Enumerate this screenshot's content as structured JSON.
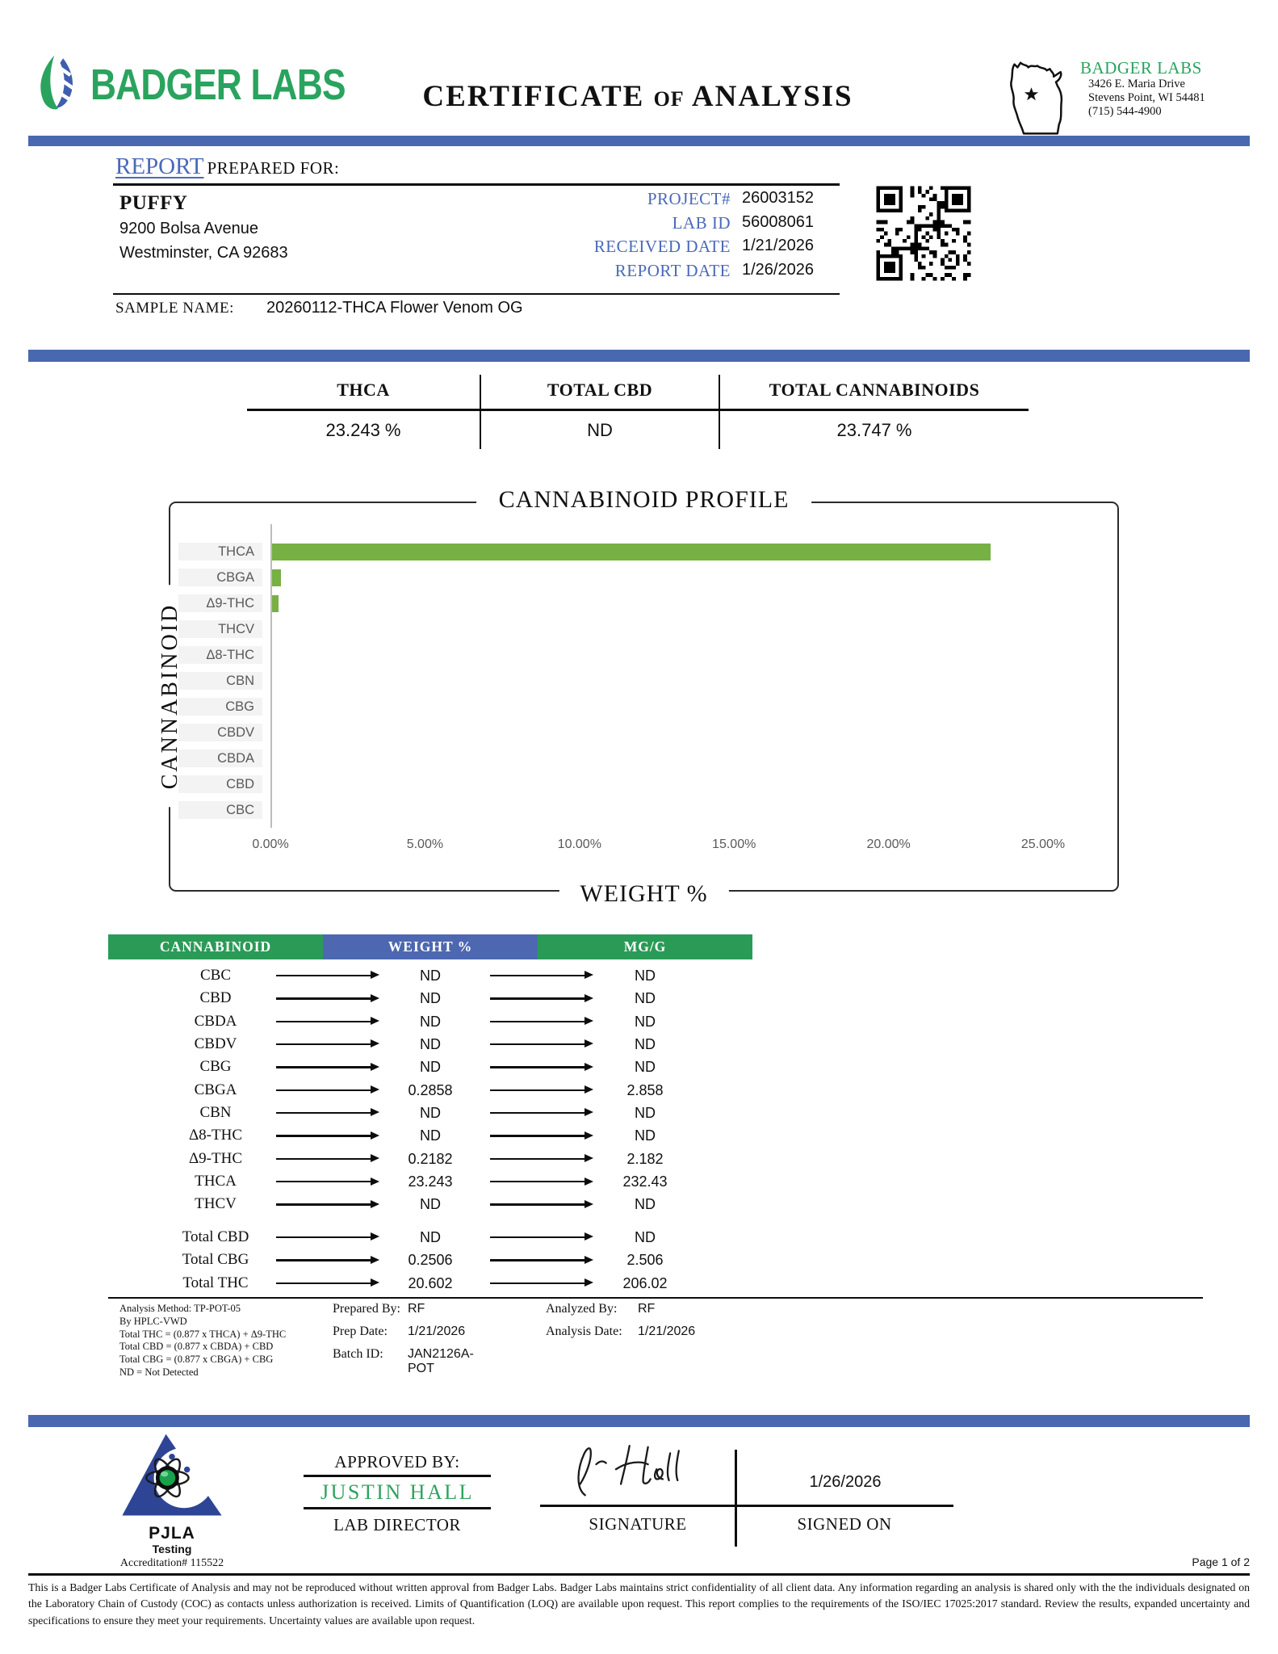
{
  "header": {
    "brand": "BADGER LABS",
    "title_1": "CERTIFICATE",
    "title_of": "OF",
    "title_2": "ANALYSIS",
    "lab_name": "BADGER LABS",
    "lab_address_line1": "3426 E. Maria Drive",
    "lab_address_line2": "Stevens Point, WI 54481",
    "lab_phone": "(715) 544-4900"
  },
  "report": {
    "section_word": "REPORT",
    "section_rest": "PREPARED FOR:",
    "client_name": "PUFFY",
    "client_address_line1": "9200 Bolsa Avenue",
    "client_address_line2": "Westminster, CA 92683",
    "fields": [
      {
        "label": "PROJECT#",
        "value": "26003152"
      },
      {
        "label": "LAB ID",
        "value": "56008061"
      },
      {
        "label": "RECEIVED DATE",
        "value": "1/21/2026"
      },
      {
        "label": "REPORT DATE",
        "value": "1/26/2026"
      }
    ],
    "sample_name_label": "SAMPLE NAME:",
    "sample_name": "20260112-THCA Flower Venom OG"
  },
  "summary": {
    "columns": [
      {
        "label": "THCA",
        "value": "23.243 %"
      },
      {
        "label": "TOTAL CBD",
        "value": "ND"
      },
      {
        "label": "TOTAL CANNABINOIDS",
        "value": "23.747 %"
      }
    ]
  },
  "chart_data": {
    "type": "bar",
    "orientation": "horizontal",
    "title": "CANNABINOID PROFILE",
    "xlabel": "WEIGHT %",
    "ylabel": "CANNABINOID",
    "categories": [
      "THCA",
      "CBGA",
      "Δ9-THC",
      "THCV",
      "Δ8-THC",
      "CBN",
      "CBG",
      "CBDV",
      "CBDA",
      "CBD",
      "CBC"
    ],
    "values": [
      23.243,
      0.2858,
      0.2182,
      0,
      0,
      0,
      0,
      0,
      0,
      0,
      0
    ],
    "xlim": [
      0,
      25
    ],
    "xticks": [
      "0.00%",
      "5.00%",
      "10.00%",
      "15.00%",
      "20.00%",
      "25.00%"
    ],
    "grid": false,
    "bar_color": "#77b043"
  },
  "table": {
    "headers": [
      "CANNABINOID",
      "WEIGHT %",
      "MG/G"
    ],
    "rows": [
      {
        "name": "CBC",
        "weight": "ND",
        "mgg": "ND"
      },
      {
        "name": "CBD",
        "weight": "ND",
        "mgg": "ND"
      },
      {
        "name": "CBDA",
        "weight": "ND",
        "mgg": "ND"
      },
      {
        "name": "CBDV",
        "weight": "ND",
        "mgg": "ND"
      },
      {
        "name": "CBG",
        "weight": "ND",
        "mgg": "ND"
      },
      {
        "name": "CBGA",
        "weight": "0.2858",
        "mgg": "2.858"
      },
      {
        "name": "CBN",
        "weight": "ND",
        "mgg": "ND"
      },
      {
        "name": "Δ8-THC",
        "weight": "ND",
        "mgg": "ND"
      },
      {
        "name": "Δ9-THC",
        "weight": "0.2182",
        "mgg": "2.182"
      },
      {
        "name": "THCA",
        "weight": "23.243",
        "mgg": "232.43"
      },
      {
        "name": "THCV",
        "weight": "ND",
        "mgg": "ND"
      }
    ],
    "totals": [
      {
        "name": "Total CBD",
        "weight": "ND",
        "mgg": "ND"
      },
      {
        "name": "Total CBG",
        "weight": "0.2506",
        "mgg": "2.506"
      },
      {
        "name": "Total THC",
        "weight": "20.602",
        "mgg": "206.02"
      }
    ]
  },
  "notes": {
    "left_lines": [
      "Analysis Method: TP-POT-05",
      "By HPLC-VWD",
      "Total THC = (0.877 x  THCA) + Δ9-THC",
      "Total CBD = (0.877 x  CBDA) + CBD",
      "Total CBG = (0.877 x  CBGA) + CBG",
      "ND = Not Detected"
    ],
    "mid": [
      {
        "label": "Prepared By:",
        "value": "RF"
      },
      {
        "label": "Prep Date:",
        "value": "1/21/2026"
      },
      {
        "label": "Batch ID:",
        "value": "JAN2126A-POT"
      }
    ],
    "right": [
      {
        "label": "Analyzed By:",
        "value": "RF"
      },
      {
        "label": "Analysis Date:",
        "value": "1/21/2026"
      }
    ]
  },
  "footer": {
    "pjla_name": "PJLA",
    "pjla_sub": "Testing",
    "accreditation": "Accreditation# 115522",
    "approved_by_label": "APPROVED BY:",
    "approver": "JUSTIN HALL",
    "approver_title": "LAB DIRECTOR",
    "signature_label": "SIGNATURE",
    "signed_on_date": "1/26/2026",
    "signed_on_label": "SIGNED ON",
    "page": "Page 1 of 2",
    "disclaimer": "This is a Badger Labs Certificate of Analysis and may not be reproduced without written approval from Badger Labs. Badger Labs maintains strict confidentiality of all client data. Any information regarding an analysis is shared only with the the individuals designated on the Laboratory Chain of Custody (COC) as contacts unless authorization is received. Limits of Quantification (LOQ) are available upon request. This report complies to the requirements of the ISO/IEC 17025:2017 standard. Review the results, expanded uncertainty and specifications to ensure they meet your requirements. Uncertainty values are available upon request."
  },
  "colors": {
    "accent_blue_bar": "#4a68af",
    "accent_blue_text": "#4a69b8",
    "brand_green": "#2aa35e",
    "table_green": "#2a9b57",
    "table_blue": "#4d68b0",
    "bar_green": "#77b043"
  }
}
